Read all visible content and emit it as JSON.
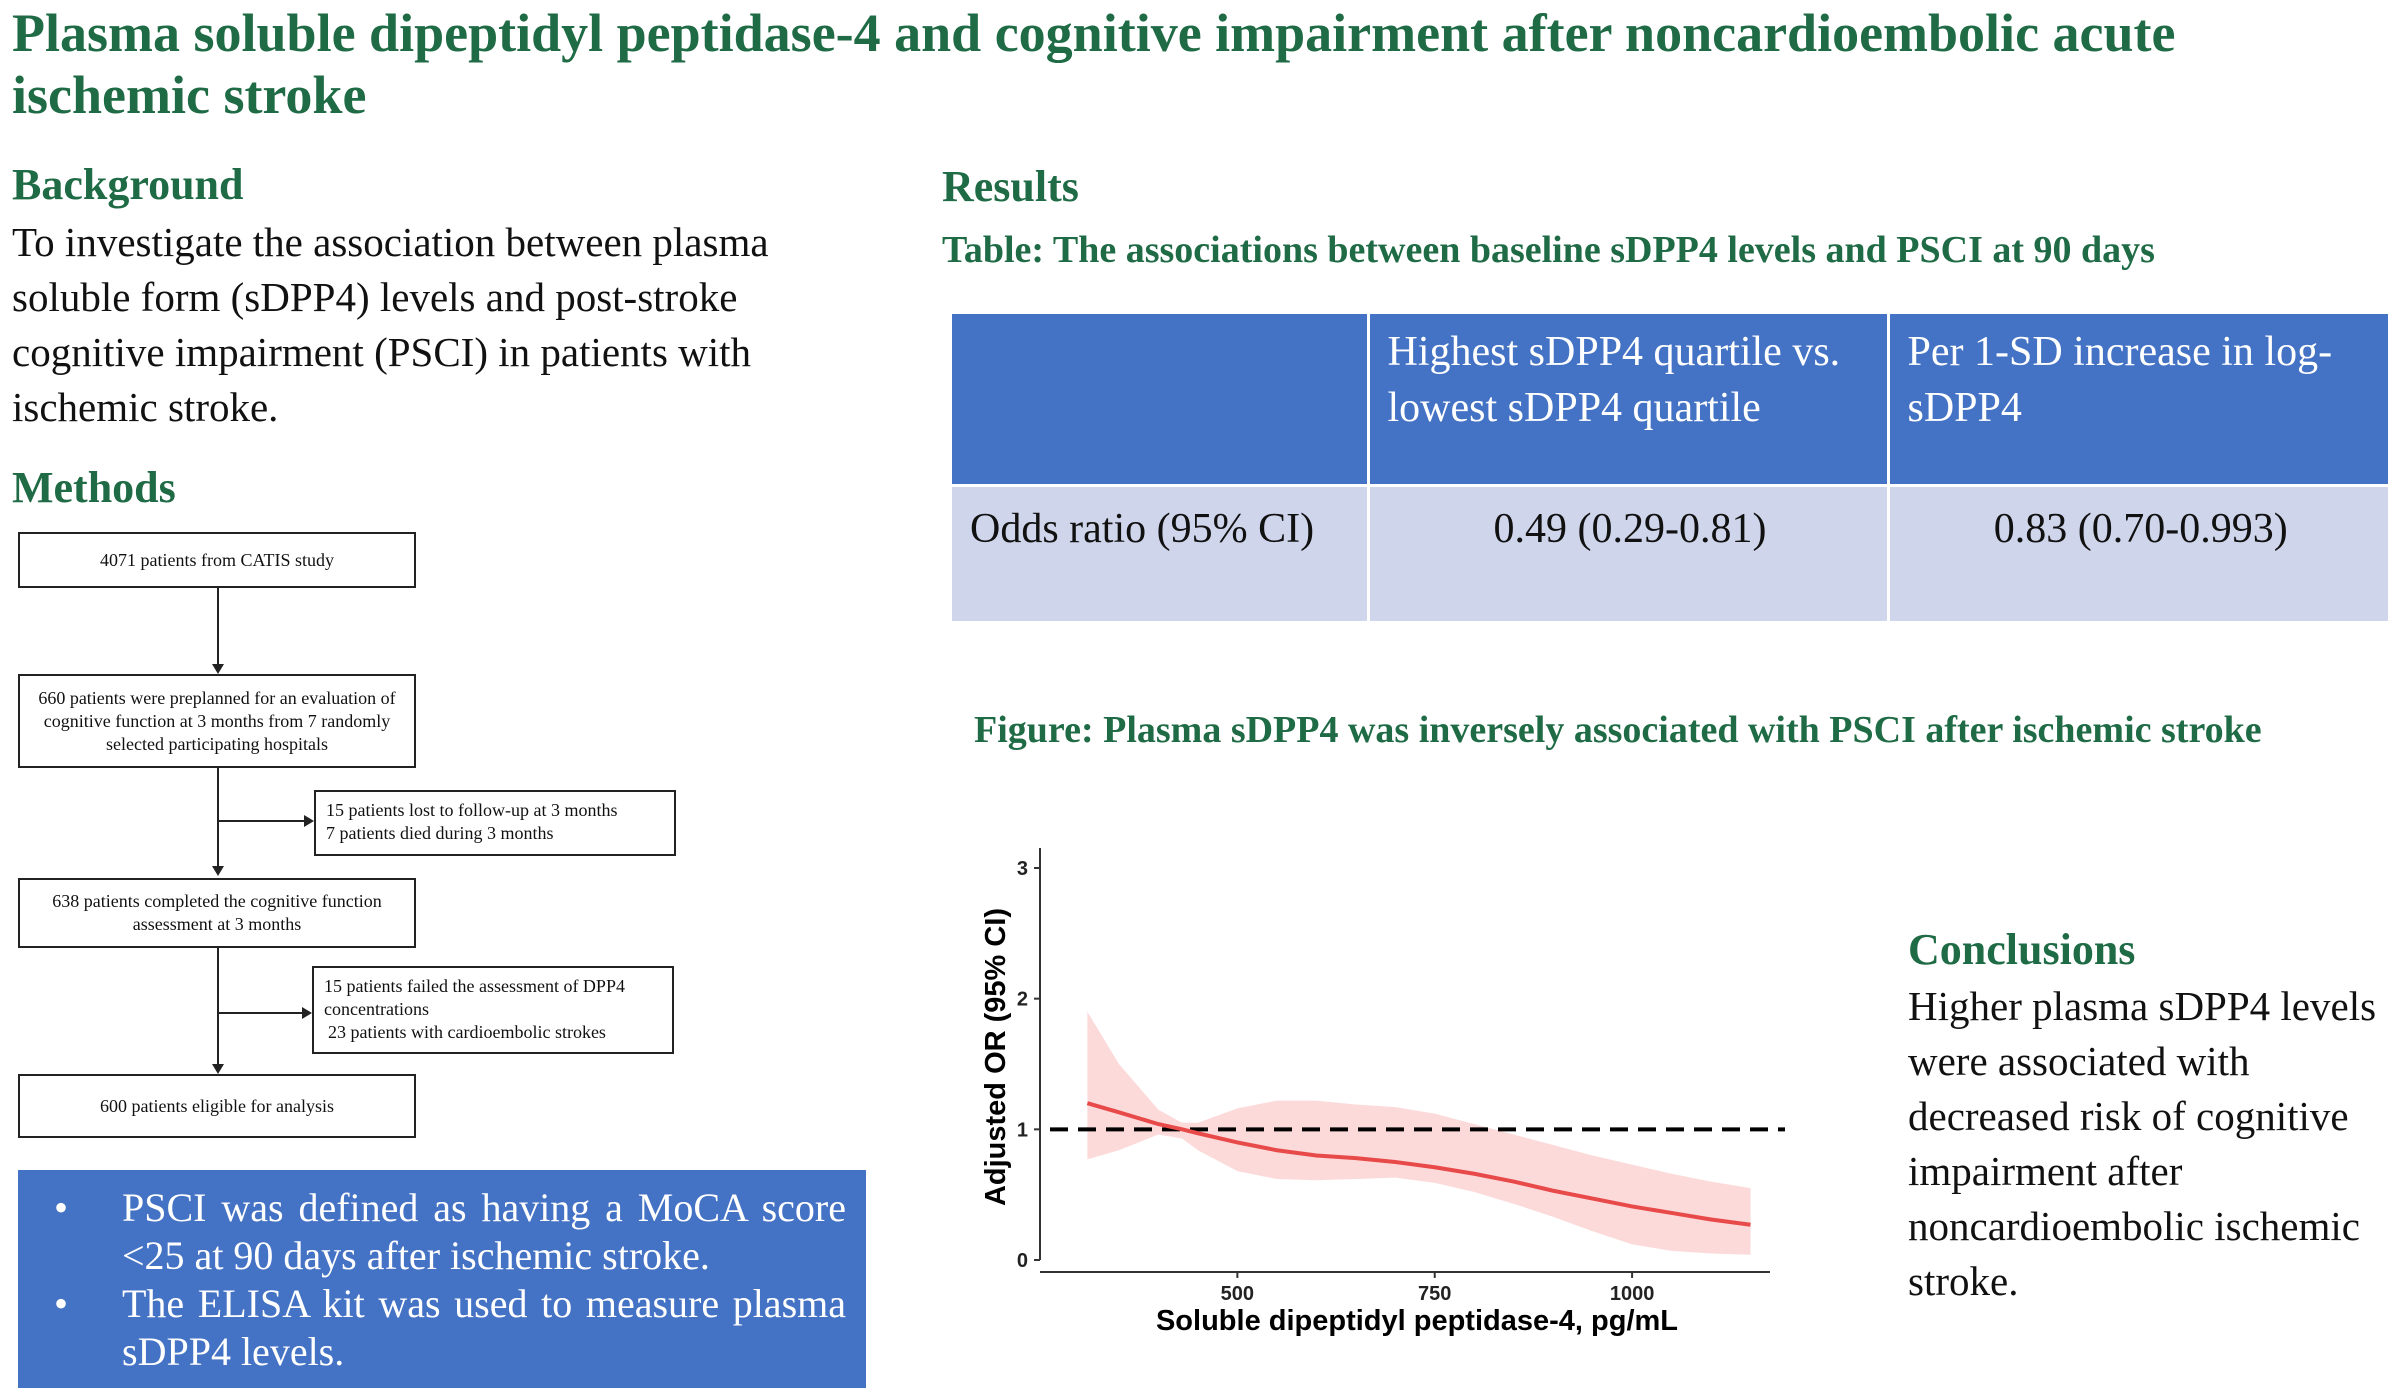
{
  "title": "Plasma soluble dipeptidyl peptidase-4 and cognitive impairment after noncardioembolic acute ischemic stroke",
  "background": {
    "heading": "Background",
    "text": "To investigate the association between plasma soluble form (sDPP4) levels and post-stroke cognitive impairment (PSCI) in patients with ischemic stroke."
  },
  "methods": {
    "heading": "Methods",
    "flowchart": {
      "box1": "4071 patients from CATIS study",
      "box2": "660 patients were preplanned for an evaluation of cognitive function at 3 months from 7 randomly selected participating hospitals",
      "excl1_line1": "15 patients lost to follow-up at 3 months",
      "excl1_line2": "7 patients died during 3 months",
      "box3": "638 patients completed the cognitive function assessment at 3 months",
      "excl2_line1": "15 patients failed the assessment of DPP4 concentrations",
      "excl2_line2": "23 patients with cardioembolic strokes",
      "box4": "600 patients eligible for analysis"
    },
    "notes": [
      {
        "bullet": "•",
        "text": "PSCI was defined as having a MoCA score <25 at 90 days after ischemic stroke."
      },
      {
        "bullet": "•",
        "text": "The ELISA kit was used to measure plasma sDPP4 levels."
      }
    ]
  },
  "results": {
    "heading": "Results",
    "table_caption": "Table: The associations between baseline sDPP4 levels and PSCI at 90 days",
    "table": {
      "headers": [
        "",
        "Highest sDPP4 quartile vs. lowest sDPP4 quartile",
        "Per 1-SD increase in log-sDPP4"
      ],
      "row": [
        "Odds ratio (95% CI)",
        "0.49 (0.29-0.81)",
        "0.83 (0.70-0.993)"
      ]
    },
    "figure_caption": "Figure: Plasma sDPP4 was inversely associated with PSCI after ischemic stroke"
  },
  "chart_data": {
    "type": "line",
    "xlabel": "Soluble dipeptidyl peptidase-4, pg/mL",
    "ylabel": "Adjusted OR (95% CI)",
    "xlim": [
      250,
      1200
    ],
    "ylim": [
      0,
      3
    ],
    "x_ticks": [
      500,
      750,
      1000
    ],
    "y_ticks": [
      0,
      1,
      2,
      3
    ],
    "reference_line": 1,
    "colors": {
      "line": "#e84a4a",
      "band": "#fbd3d3",
      "reference": "#000000"
    },
    "series": [
      {
        "x": [
          310,
          350,
          400,
          430,
          450,
          500,
          550,
          600,
          650,
          700,
          750,
          800,
          850,
          900,
          950,
          1000,
          1050,
          1100,
          1150
        ],
        "y": [
          1.2,
          1.13,
          1.04,
          1.0,
          0.97,
          0.9,
          0.84,
          0.8,
          0.78,
          0.75,
          0.71,
          0.66,
          0.6,
          0.53,
          0.47,
          0.41,
          0.36,
          0.31,
          0.27
        ],
        "lower": [
          0.77,
          0.84,
          0.96,
          0.93,
          0.84,
          0.68,
          0.62,
          0.61,
          0.62,
          0.63,
          0.59,
          0.52,
          0.43,
          0.33,
          0.22,
          0.12,
          0.07,
          0.05,
          0.04
        ],
        "upper": [
          1.9,
          1.5,
          1.15,
          1.05,
          1.05,
          1.16,
          1.22,
          1.22,
          1.19,
          1.17,
          1.12,
          1.04,
          0.96,
          0.88,
          0.8,
          0.73,
          0.66,
          0.6,
          0.55
        ]
      }
    ]
  },
  "conclusions": {
    "heading": "Conclusions",
    "text": "Higher plasma sDPP4 levels were associated with decreased risk of cognitive impairment after noncardioembolic ischemic stroke."
  }
}
